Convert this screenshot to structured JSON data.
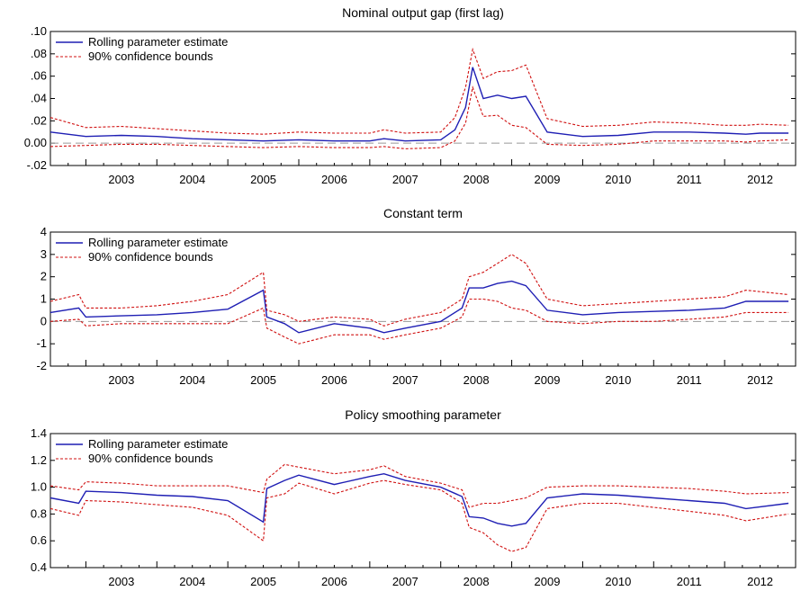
{
  "colors": {
    "estimate": "#1f1fb4",
    "confidence": "#d01010",
    "zero_line": "#999999"
  },
  "chart_data": [
    {
      "type": "line",
      "title": "Nominal output gap (first lag)",
      "xlim": [
        2002.5,
        2013.0
      ],
      "ylim": [
        -0.02,
        0.1
      ],
      "yticks": [
        -0.02,
        0.0,
        0.02,
        0.04,
        0.06,
        0.08,
        0.1
      ],
      "ytick_labels": [
        "-.02",
        "0.00",
        ".02",
        ".04",
        ".06",
        ".08",
        ".10"
      ],
      "xtick_labels": [
        "2003",
        "2004",
        "2005",
        "2006",
        "2007",
        "2008",
        "2009",
        "2010",
        "2011",
        "2012"
      ],
      "legend_position": "top-left",
      "reference_line": 0,
      "x": [
        2002.5,
        2003.0,
        2003.5,
        2004.0,
        2004.5,
        2005.0,
        2005.5,
        2006.0,
        2006.5,
        2007.0,
        2007.2,
        2007.5,
        2008.0,
        2008.2,
        2008.35,
        2008.45,
        2008.6,
        2008.8,
        2009.0,
        2009.2,
        2009.5,
        2010.0,
        2010.5,
        2011.0,
        2011.5,
        2012.0,
        2012.3,
        2012.5,
        2012.9
      ],
      "series": [
        {
          "name": "Rolling parameter estimate",
          "style": "estimate",
          "values": [
            0.01,
            0.006,
            0.007,
            0.006,
            0.004,
            0.003,
            0.002,
            0.003,
            0.002,
            0.002,
            0.004,
            0.002,
            0.003,
            0.012,
            0.032,
            0.068,
            0.04,
            0.043,
            0.04,
            0.042,
            0.01,
            0.006,
            0.007,
            0.01,
            0.01,
            0.009,
            0.008,
            0.009,
            0.009
          ]
        },
        {
          "name": "90% confidence bounds",
          "style": "ci",
          "values": [
            0.023,
            0.014,
            0.015,
            0.013,
            0.011,
            0.009,
            0.008,
            0.01,
            0.009,
            0.009,
            0.012,
            0.009,
            0.01,
            0.023,
            0.05,
            0.084,
            0.058,
            0.064,
            0.065,
            0.07,
            0.022,
            0.015,
            0.016,
            0.019,
            0.018,
            0.016,
            0.016,
            0.017,
            0.016
          ]
        },
        {
          "style": "ci",
          "values": [
            -0.003,
            -0.002,
            -0.001,
            -0.001,
            -0.002,
            -0.003,
            -0.004,
            -0.003,
            -0.004,
            -0.004,
            -0.003,
            -0.005,
            -0.004,
            0.002,
            0.018,
            0.05,
            0.024,
            0.025,
            0.016,
            0.014,
            -0.001,
            -0.002,
            -0.001,
            0.002,
            0.002,
            0.002,
            0.001,
            0.002,
            0.003
          ]
        }
      ]
    },
    {
      "type": "line",
      "title": "Constant term",
      "xlim": [
        2002.5,
        2013.0
      ],
      "ylim": [
        -2,
        4
      ],
      "yticks": [
        -2,
        -1,
        0,
        1,
        2,
        3,
        4
      ],
      "ytick_labels": [
        "-2",
        "-1",
        "0",
        "1",
        "2",
        "3",
        "4"
      ],
      "xtick_labels": [
        "2003",
        "2004",
        "2005",
        "2006",
        "2007",
        "2008",
        "2009",
        "2010",
        "2011",
        "2012"
      ],
      "legend_position": "top-left",
      "reference_line": 0,
      "x": [
        2002.5,
        2002.9,
        2003.0,
        2003.5,
        2004.0,
        2004.5,
        2005.0,
        2005.5,
        2005.55,
        2005.8,
        2006.0,
        2006.5,
        2007.0,
        2007.2,
        2007.5,
        2008.0,
        2008.3,
        2008.4,
        2008.6,
        2008.8,
        2009.0,
        2009.2,
        2009.5,
        2010.0,
        2010.5,
        2011.0,
        2011.5,
        2012.0,
        2012.3,
        2012.9
      ],
      "series": [
        {
          "name": "Rolling parameter estimate",
          "style": "estimate",
          "values": [
            0.4,
            0.6,
            0.2,
            0.25,
            0.3,
            0.4,
            0.55,
            1.4,
            0.2,
            -0.1,
            -0.5,
            -0.1,
            -0.3,
            -0.5,
            -0.3,
            0.0,
            0.6,
            1.5,
            1.5,
            1.7,
            1.8,
            1.6,
            0.5,
            0.3,
            0.4,
            0.45,
            0.5,
            0.6,
            0.9,
            0.9
          ]
        },
        {
          "name": "90% confidence bounds",
          "style": "ci",
          "values": [
            0.9,
            1.2,
            0.6,
            0.6,
            0.7,
            0.9,
            1.2,
            2.2,
            0.5,
            0.3,
            0.0,
            0.2,
            0.1,
            -0.2,
            0.1,
            0.4,
            1.0,
            2.0,
            2.2,
            2.6,
            3.0,
            2.6,
            1.0,
            0.7,
            0.8,
            0.9,
            1.0,
            1.1,
            1.4,
            1.2
          ]
        },
        {
          "style": "ci",
          "values": [
            0.0,
            0.1,
            -0.2,
            -0.1,
            -0.1,
            -0.1,
            -0.1,
            0.6,
            -0.3,
            -0.7,
            -1.0,
            -0.6,
            -0.6,
            -0.8,
            -0.6,
            -0.3,
            0.2,
            1.0,
            1.0,
            0.9,
            0.6,
            0.5,
            0.0,
            -0.1,
            0.0,
            0.0,
            0.1,
            0.2,
            0.4,
            0.4
          ]
        }
      ]
    },
    {
      "type": "line",
      "title": "Policy smoothing parameter",
      "xlim": [
        2002.5,
        2013.0
      ],
      "ylim": [
        0.4,
        1.4
      ],
      "yticks": [
        0.4,
        0.6,
        0.8,
        1.0,
        1.2,
        1.4
      ],
      "ytick_labels": [
        "0.4",
        "0.6",
        "0.8",
        "1.0",
        "1.2",
        "1.4"
      ],
      "xtick_labels": [
        "2003",
        "2004",
        "2005",
        "2006",
        "2007",
        "2008",
        "2009",
        "2010",
        "2011",
        "2012"
      ],
      "legend_position": "top-left",
      "x": [
        2002.5,
        2002.9,
        2003.0,
        2003.5,
        2004.0,
        2004.5,
        2005.0,
        2005.5,
        2005.55,
        2005.8,
        2006.0,
        2006.5,
        2007.0,
        2007.2,
        2007.5,
        2008.0,
        2008.3,
        2008.4,
        2008.6,
        2008.8,
        2009.0,
        2009.2,
        2009.5,
        2010.0,
        2010.5,
        2011.0,
        2011.5,
        2012.0,
        2012.3,
        2012.9
      ],
      "series": [
        {
          "name": "Rolling parameter estimate",
          "style": "estimate",
          "values": [
            0.92,
            0.88,
            0.97,
            0.96,
            0.94,
            0.93,
            0.9,
            0.74,
            0.99,
            1.05,
            1.09,
            1.02,
            1.08,
            1.1,
            1.05,
            1.0,
            0.93,
            0.78,
            0.77,
            0.73,
            0.71,
            0.73,
            0.92,
            0.95,
            0.94,
            0.92,
            0.9,
            0.88,
            0.84,
            0.88
          ]
        },
        {
          "name": "90% confidence bounds",
          "style": "ci",
          "values": [
            1.01,
            0.98,
            1.04,
            1.03,
            1.01,
            1.01,
            1.01,
            0.96,
            1.06,
            1.17,
            1.15,
            1.1,
            1.13,
            1.16,
            1.08,
            1.03,
            0.98,
            0.85,
            0.88,
            0.88,
            0.9,
            0.92,
            1.0,
            1.01,
            1.01,
            1.0,
            0.99,
            0.97,
            0.95,
            0.96
          ]
        },
        {
          "style": "ci",
          "values": [
            0.84,
            0.79,
            0.9,
            0.89,
            0.87,
            0.85,
            0.79,
            0.6,
            0.92,
            0.95,
            1.03,
            0.95,
            1.03,
            1.05,
            1.02,
            0.98,
            0.88,
            0.7,
            0.66,
            0.57,
            0.52,
            0.55,
            0.84,
            0.88,
            0.88,
            0.85,
            0.82,
            0.79,
            0.75,
            0.8
          ]
        }
      ]
    }
  ]
}
